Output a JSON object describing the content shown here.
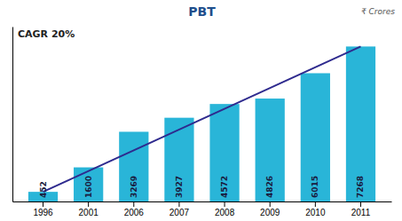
{
  "chart_data": {
    "type": "bar",
    "title": "PBT",
    "subtitle": "CAGR 20%",
    "annotation": "₹ Crores",
    "categories": [
      "1996",
      "2001",
      "2006",
      "2007",
      "2008",
      "2009",
      "2010",
      "2011"
    ],
    "values": [
      452,
      1600,
      3269,
      3927,
      4572,
      4826,
      6015,
      7268
    ],
    "color": "#29B5D8",
    "trend": {
      "values": [
        452,
        7268
      ],
      "color": "#2E2A8E"
    },
    "data_labels": true,
    "ylim": [
      0,
      8200
    ],
    "yticks": [],
    "grid": false,
    "tick_labels": "x"
  }
}
